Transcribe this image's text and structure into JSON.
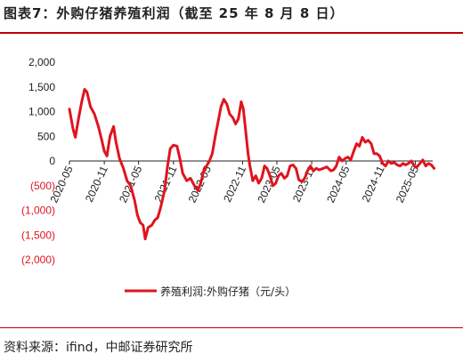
{
  "title": "图表7：外购仔猪养殖利润（截至 25 年 8 月 8 日）",
  "source": "资料来源：ifind，中邮证券研究所",
  "colors": {
    "series": "#e0141e",
    "negative_tick": "#e0141e",
    "positive_tick": "#222222",
    "rule": "#c00000"
  },
  "chart_data": {
    "type": "line",
    "title": "图表7：外购仔猪养殖利润（截至 25 年 8 月 8 日）",
    "xlabel": "",
    "ylabel": "",
    "ylim": [
      -2000,
      2000
    ],
    "yticks": [
      2000,
      1500,
      1000,
      500,
      0,
      -500,
      -1000,
      -1500,
      -2000
    ],
    "ytick_labels": [
      "2,000",
      "1,500",
      "1,000",
      "500",
      "0",
      "(500)",
      "(1,000)",
      "(1,500)",
      "(2,000)"
    ],
    "xrange": [
      "2020-05",
      "2025-08"
    ],
    "xticks": [
      "2020-05",
      "2020-11",
      "2021-05",
      "2021-11",
      "2022-05",
      "2022-11",
      "2023-05",
      "2023-11",
      "2024-05",
      "2024-11",
      "2025-05"
    ],
    "grid": false,
    "legend_position": "bottom",
    "series": [
      {
        "name": "养殖利润:外购仔猪（元/头）",
        "points": [
          [
            "2020-05-01",
            1050
          ],
          [
            "2020-05-20",
            650
          ],
          [
            "2020-06-01",
            480
          ],
          [
            "2020-06-20",
            900
          ],
          [
            "2020-07-05",
            1200
          ],
          [
            "2020-07-20",
            1450
          ],
          [
            "2020-08-01",
            1400
          ],
          [
            "2020-08-20",
            1100
          ],
          [
            "2020-09-10",
            950
          ],
          [
            "2020-10-01",
            700
          ],
          [
            "2020-10-20",
            400
          ],
          [
            "2020-11-01",
            200
          ],
          [
            "2020-11-15",
            100
          ],
          [
            "2020-12-01",
            500
          ],
          [
            "2020-12-20",
            700
          ],
          [
            "2021-01-01",
            400
          ],
          [
            "2021-01-20",
            50
          ],
          [
            "2021-02-10",
            -150
          ],
          [
            "2021-03-01",
            -400
          ],
          [
            "2021-03-20",
            -500
          ],
          [
            "2021-04-10",
            -800
          ],
          [
            "2021-04-25",
            -1100
          ],
          [
            "2021-05-10",
            -1250
          ],
          [
            "2021-05-25",
            -1300
          ],
          [
            "2021-06-05",
            -1580
          ],
          [
            "2021-06-20",
            -1350
          ],
          [
            "2021-07-10",
            -1300
          ],
          [
            "2021-07-25",
            -1200
          ],
          [
            "2021-08-10",
            -1150
          ],
          [
            "2021-08-25",
            -950
          ],
          [
            "2021-09-15",
            -600
          ],
          [
            "2021-10-01",
            -100
          ],
          [
            "2021-10-15",
            250
          ],
          [
            "2021-11-01",
            320
          ],
          [
            "2021-11-20",
            300
          ],
          [
            "2021-12-05",
            50
          ],
          [
            "2021-12-20",
            -250
          ],
          [
            "2022-01-10",
            -400
          ],
          [
            "2022-01-30",
            -350
          ],
          [
            "2022-02-20",
            -500
          ],
          [
            "2022-03-10",
            -600
          ],
          [
            "2022-03-25",
            -450
          ],
          [
            "2022-04-10",
            -200
          ],
          [
            "2022-04-25",
            -100
          ],
          [
            "2022-05-10",
            0
          ],
          [
            "2022-05-25",
            150
          ],
          [
            "2022-06-10",
            500
          ],
          [
            "2022-06-25",
            800
          ],
          [
            "2022-07-10",
            1100
          ],
          [
            "2022-07-25",
            1250
          ],
          [
            "2022-08-10",
            1150
          ],
          [
            "2022-08-25",
            950
          ],
          [
            "2022-09-10",
            880
          ],
          [
            "2022-09-25",
            750
          ],
          [
            "2022-10-10",
            850
          ],
          [
            "2022-10-25",
            1200
          ],
          [
            "2022-11-05",
            1050
          ],
          [
            "2022-11-15",
            700
          ],
          [
            "2022-11-30",
            150
          ],
          [
            "2022-12-10",
            -100
          ],
          [
            "2022-12-25",
            -400
          ],
          [
            "2023-01-10",
            -300
          ],
          [
            "2023-01-25",
            -450
          ],
          [
            "2023-02-10",
            -350
          ],
          [
            "2023-02-25",
            -100
          ],
          [
            "2023-03-10",
            -150
          ],
          [
            "2023-03-25",
            -300
          ],
          [
            "2023-04-10",
            -500
          ],
          [
            "2023-04-25",
            -450
          ],
          [
            "2023-05-10",
            -300
          ],
          [
            "2023-05-25",
            -250
          ],
          [
            "2023-06-10",
            -350
          ],
          [
            "2023-06-25",
            -300
          ],
          [
            "2023-07-10",
            -100
          ],
          [
            "2023-07-25",
            -80
          ],
          [
            "2023-08-10",
            -150
          ],
          [
            "2023-08-25",
            -380
          ],
          [
            "2023-09-10",
            -420
          ],
          [
            "2023-09-25",
            -350
          ],
          [
            "2023-10-10",
            -200
          ],
          [
            "2023-10-25",
            -100
          ],
          [
            "2023-11-10",
            -200
          ],
          [
            "2023-11-25",
            -150
          ],
          [
            "2023-12-10",
            -180
          ],
          [
            "2024-01-01",
            -150
          ],
          [
            "2024-01-20",
            -120
          ],
          [
            "2024-02-10",
            -200
          ],
          [
            "2024-02-25",
            -180
          ],
          [
            "2024-03-10",
            -100
          ],
          [
            "2024-03-25",
            80
          ],
          [
            "2024-04-10",
            0
          ],
          [
            "2024-04-25",
            50
          ],
          [
            "2024-05-10",
            80
          ],
          [
            "2024-05-25",
            20
          ],
          [
            "2024-06-10",
            200
          ],
          [
            "2024-06-25",
            350
          ],
          [
            "2024-07-10",
            300
          ],
          [
            "2024-07-25",
            480
          ],
          [
            "2024-08-10",
            380
          ],
          [
            "2024-08-25",
            420
          ],
          [
            "2024-09-10",
            350
          ],
          [
            "2024-09-25",
            150
          ],
          [
            "2024-10-10",
            150
          ],
          [
            "2024-10-25",
            100
          ],
          [
            "2024-11-10",
            -50
          ],
          [
            "2024-11-25",
            -100
          ],
          [
            "2024-12-10",
            0
          ],
          [
            "2024-12-25",
            -50
          ],
          [
            "2025-01-10",
            -30
          ],
          [
            "2025-01-25",
            -80
          ],
          [
            "2025-02-10",
            -100
          ],
          [
            "2025-02-25",
            -50
          ],
          [
            "2025-03-10",
            -80
          ],
          [
            "2025-03-25",
            -50
          ],
          [
            "2025-04-10",
            0
          ],
          [
            "2025-04-25",
            -100
          ],
          [
            "2025-05-10",
            -120
          ],
          [
            "2025-05-25",
            -50
          ],
          [
            "2025-06-10",
            20
          ],
          [
            "2025-06-25",
            -100
          ],
          [
            "2025-07-10",
            -50
          ],
          [
            "2025-07-25",
            -80
          ],
          [
            "2025-08-08",
            -150
          ]
        ]
      }
    ]
  }
}
